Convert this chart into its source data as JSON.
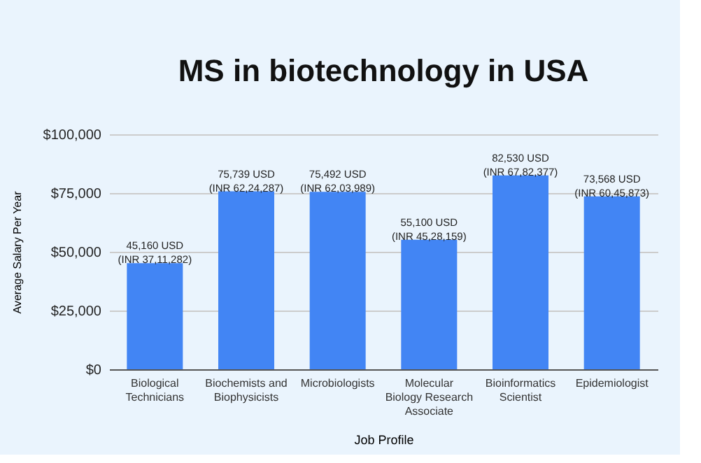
{
  "chart_data": {
    "type": "bar",
    "title": "MS in biotechnology in USA",
    "xlabel": "Job Profile",
    "ylabel": "Average Salary Per Year",
    "categories": [
      "Biological Technicians",
      "Biochemists and Biophysicists",
      "Microbiologists",
      "Molecular Biology Research Associate",
      "Bioinformatics Scientist",
      "Epidemiologist"
    ],
    "values": [
      45160,
      75739,
      75492,
      55100,
      82530,
      73568
    ],
    "value_labels": [
      "45,160 USD (INR 37,11,282)",
      "75,739 USD (INR 62,24,287)",
      "75,492 USD (INR 62,03,989)",
      "55,100 USD (INR 45,28,159)",
      "82,530 USD (INR 67,82,377)",
      "73,568 USD (INR 60,45,873)"
    ],
    "color": "#4285f4",
    "ylim": [
      0,
      100000
    ],
    "yticks": [
      {
        "value": 0,
        "label": "$0"
      },
      {
        "value": 25000,
        "label": "$25,000"
      },
      {
        "value": 50000,
        "label": "$50,000"
      },
      {
        "value": 75000,
        "label": "$75,000"
      },
      {
        "value": 100000,
        "label": "$100,000"
      }
    ],
    "grid": "y"
  }
}
